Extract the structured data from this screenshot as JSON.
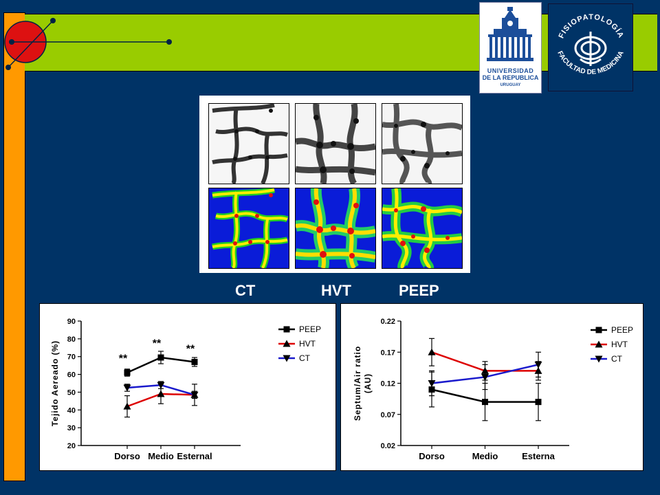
{
  "header": {
    "logo_udelar": {
      "line1": "UNIVERSIDAD",
      "line2": "DE LA REPUBLICA",
      "line3": "URUGUAY"
    },
    "logo_fisio": {
      "top_text": "FISIOPATOLOGÍA",
      "bottom_text": "FACULTAD DE MEDICINA"
    }
  },
  "colors": {
    "background": "#003366",
    "accent_orange": "#ff9900",
    "accent_green": "#99cc00",
    "decor_circle": "#dd1111"
  },
  "image_labels": [
    "CT",
    "HVT",
    "PEEP"
  ],
  "chart_data": [
    {
      "type": "line",
      "ylabel": "Tejido Aereado (%)",
      "xlabel": "",
      "categories": [
        "Dorso",
        "Medio",
        "Esternal"
      ],
      "ylim": [
        20,
        90
      ],
      "yticks": [
        "20",
        "30",
        "40",
        "50",
        "60",
        "70",
        "80",
        "90"
      ],
      "legend_position": "top-right",
      "series": [
        {
          "name": "PEEP",
          "color": "#000000",
          "marker": "square",
          "values": [
            61,
            69.5,
            67
          ],
          "errors": [
            2,
            3.5,
            2.5
          ]
        },
        {
          "name": "HVT",
          "color": "#dd0000",
          "marker": "triangle-up",
          "values": [
            42,
            49,
            48.5
          ],
          "errors": [
            6,
            5.5,
            6
          ]
        },
        {
          "name": "CT",
          "color": "#1a1acc",
          "marker": "triangle-down",
          "values": [
            52.5,
            54,
            48.5
          ],
          "errors": [
            2,
            2,
            2
          ]
        }
      ],
      "annotations": [
        {
          "category": "Dorso",
          "text": "**",
          "y": 67
        },
        {
          "category": "Medio",
          "text": "**",
          "y": 75.5
        },
        {
          "category": "Esternal",
          "text": "**",
          "y": 72.5
        }
      ]
    },
    {
      "type": "line",
      "ylabel_line1": "Septum/Air ratio",
      "ylabel_line2": "(AU)",
      "xlabel": "",
      "categories": [
        "Dorso",
        "Medio",
        "Esterna"
      ],
      "ylim": [
        0.02,
        0.22
      ],
      "yticks": [
        "0.02",
        "0.07",
        "0.12",
        "0.17",
        "0.22"
      ],
      "legend_position": "top-right",
      "series": [
        {
          "name": "PEEP",
          "color": "#000000",
          "marker": "square",
          "values": [
            0.11,
            0.09,
            0.09
          ],
          "errors": [
            0.028,
            0.03,
            0.03
          ]
        },
        {
          "name": "HVT",
          "color": "#dd0000",
          "marker": "triangle-up",
          "values": [
            0.17,
            0.14,
            0.14
          ],
          "errors": [
            0.022,
            0.015,
            0.015
          ]
        },
        {
          "name": "CT",
          "color": "#1a1acc",
          "marker": "triangle-down",
          "values": [
            0.12,
            0.13,
            0.15
          ],
          "errors": [
            0.02,
            0.02,
            0.02
          ]
        }
      ]
    }
  ]
}
